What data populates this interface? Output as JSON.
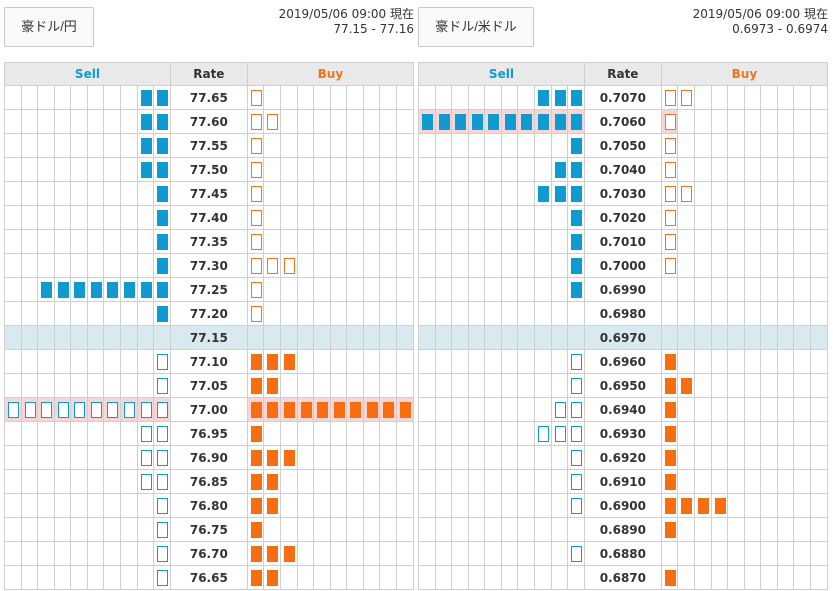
{
  "panels": [
    {
      "pair": "豪ドル/円",
      "timestamp": "2019/05/06 09:00 現在",
      "quote": "77.15 - 77.16",
      "headers": {
        "sell": "Sell",
        "rate": "Rate",
        "buy": "Buy"
      },
      "rows": [
        {
          "rate": "77.65",
          "sell_filled": 2,
          "sell_open": 0,
          "buy_filled": 0,
          "buy_open": 1
        },
        {
          "rate": "77.60",
          "sell_filled": 2,
          "sell_open": 0,
          "buy_filled": 0,
          "buy_open": 2
        },
        {
          "rate": "77.55",
          "sell_filled": 2,
          "sell_open": 0,
          "buy_filled": 0,
          "buy_open": 1
        },
        {
          "rate": "77.50",
          "sell_filled": 2,
          "sell_open": 0,
          "buy_filled": 0,
          "buy_open": 1
        },
        {
          "rate": "77.45",
          "sell_filled": 1,
          "sell_open": 0,
          "buy_filled": 0,
          "buy_open": 1
        },
        {
          "rate": "77.40",
          "sell_filled": 1,
          "sell_open": 0,
          "buy_filled": 0,
          "buy_open": 1
        },
        {
          "rate": "77.35",
          "sell_filled": 1,
          "sell_open": 0,
          "buy_filled": 0,
          "buy_open": 1
        },
        {
          "rate": "77.30",
          "sell_filled": 1,
          "sell_open": 0,
          "buy_filled": 0,
          "buy_open": 3
        },
        {
          "rate": "77.25",
          "sell_filled": 8,
          "sell_open": 0,
          "buy_filled": 0,
          "buy_open": 1
        },
        {
          "rate": "77.20",
          "sell_filled": 1,
          "sell_open": 0,
          "buy_filled": 0,
          "buy_open": 1
        },
        {
          "rate": "77.15",
          "current": true,
          "sell_filled": 0,
          "sell_open": 0,
          "buy_filled": 0,
          "buy_open": 0
        },
        {
          "rate": "77.10",
          "sell_filled": 0,
          "sell_open": 1,
          "buy_filled": 3,
          "buy_open": 0
        },
        {
          "rate": "77.05",
          "sell_filled": 0,
          "sell_open": 1,
          "buy_filled": 2,
          "buy_open": 0
        },
        {
          "rate": "77.00",
          "highlight": true,
          "sell_filled": 0,
          "sell_open": 10,
          "buy_filled": 10,
          "buy_open": 0
        },
        {
          "rate": "76.95",
          "sell_filled": 0,
          "sell_open": 2,
          "buy_filled": 1,
          "buy_open": 0
        },
        {
          "rate": "76.90",
          "sell_filled": 0,
          "sell_open": 2,
          "buy_filled": 3,
          "buy_open": 0
        },
        {
          "rate": "76.85",
          "sell_filled": 0,
          "sell_open": 2,
          "buy_filled": 2,
          "buy_open": 0
        },
        {
          "rate": "76.80",
          "sell_filled": 0,
          "sell_open": 1,
          "buy_filled": 2,
          "buy_open": 0
        },
        {
          "rate": "76.75",
          "sell_filled": 0,
          "sell_open": 1,
          "buy_filled": 1,
          "buy_open": 0
        },
        {
          "rate": "76.70",
          "sell_filled": 0,
          "sell_open": 1,
          "buy_filled": 3,
          "buy_open": 0
        },
        {
          "rate": "76.65",
          "sell_filled": 0,
          "sell_open": 1,
          "buy_filled": 2,
          "buy_open": 0
        }
      ]
    },
    {
      "pair": "豪ドル/米ドル",
      "timestamp": "2019/05/06 09:00 現在",
      "quote": "0.6973 - 0.6974",
      "headers": {
        "sell": "Sell",
        "rate": "Rate",
        "buy": "Buy"
      },
      "rows": [
        {
          "rate": "0.7070",
          "sell_filled": 3,
          "sell_open": 0,
          "buy_filled": 0,
          "buy_open": 2
        },
        {
          "rate": "0.7060",
          "highlight": true,
          "sell_filled": 10,
          "sell_open": 0,
          "buy_filled": 0,
          "buy_open": 1
        },
        {
          "rate": "0.7050",
          "sell_filled": 1,
          "sell_open": 0,
          "buy_filled": 0,
          "buy_open": 1
        },
        {
          "rate": "0.7040",
          "sell_filled": 2,
          "sell_open": 0,
          "buy_filled": 0,
          "buy_open": 1
        },
        {
          "rate": "0.7030",
          "sell_filled": 3,
          "sell_open": 0,
          "buy_filled": 0,
          "buy_open": 2
        },
        {
          "rate": "0.7020",
          "sell_filled": 1,
          "sell_open": 0,
          "buy_filled": 0,
          "buy_open": 1
        },
        {
          "rate": "0.7010",
          "sell_filled": 1,
          "sell_open": 0,
          "buy_filled": 0,
          "buy_open": 1
        },
        {
          "rate": "0.7000",
          "sell_filled": 1,
          "sell_open": 0,
          "buy_filled": 0,
          "buy_open": 1
        },
        {
          "rate": "0.6990",
          "sell_filled": 1,
          "sell_open": 0,
          "buy_filled": 0,
          "buy_open": 0
        },
        {
          "rate": "0.6980",
          "sell_filled": 0,
          "sell_open": 0,
          "buy_filled": 0,
          "buy_open": 0
        },
        {
          "rate": "0.6970",
          "current": true,
          "sell_filled": 0,
          "sell_open": 0,
          "buy_filled": 0,
          "buy_open": 0
        },
        {
          "rate": "0.6960",
          "sell_filled": 0,
          "sell_open": 1,
          "buy_filled": 1,
          "buy_open": 0
        },
        {
          "rate": "0.6950",
          "sell_filled": 0,
          "sell_open": 1,
          "buy_filled": 2,
          "buy_open": 0
        },
        {
          "rate": "0.6940",
          "sell_filled": 0,
          "sell_open": 2,
          "buy_filled": 1,
          "buy_open": 0
        },
        {
          "rate": "0.6930",
          "sell_filled": 0,
          "sell_open": 3,
          "buy_filled": 1,
          "buy_open": 0
        },
        {
          "rate": "0.6920",
          "sell_filled": 0,
          "sell_open": 1,
          "buy_filled": 1,
          "buy_open": 0
        },
        {
          "rate": "0.6910",
          "sell_filled": 0,
          "sell_open": 1,
          "buy_filled": 1,
          "buy_open": 0
        },
        {
          "rate": "0.6900",
          "sell_filled": 0,
          "sell_open": 1,
          "buy_filled": 4,
          "buy_open": 0
        },
        {
          "rate": "0.6890",
          "sell_filled": 0,
          "sell_open": 0,
          "buy_filled": 1,
          "buy_open": 0
        },
        {
          "rate": "0.6880",
          "sell_filled": 0,
          "sell_open": 1,
          "buy_filled": 0,
          "buy_open": 0
        },
        {
          "rate": "0.6870",
          "sell_filled": 0,
          "sell_open": 0,
          "buy_filled": 1,
          "buy_open": 0
        }
      ]
    }
  ],
  "colors": {
    "sell": "#0f9ad0",
    "buy": "#f66d12",
    "current_row": "#d8e9ef",
    "highlight_row": "#f6d6d6",
    "header_bg": "#e9e9e9"
  }
}
